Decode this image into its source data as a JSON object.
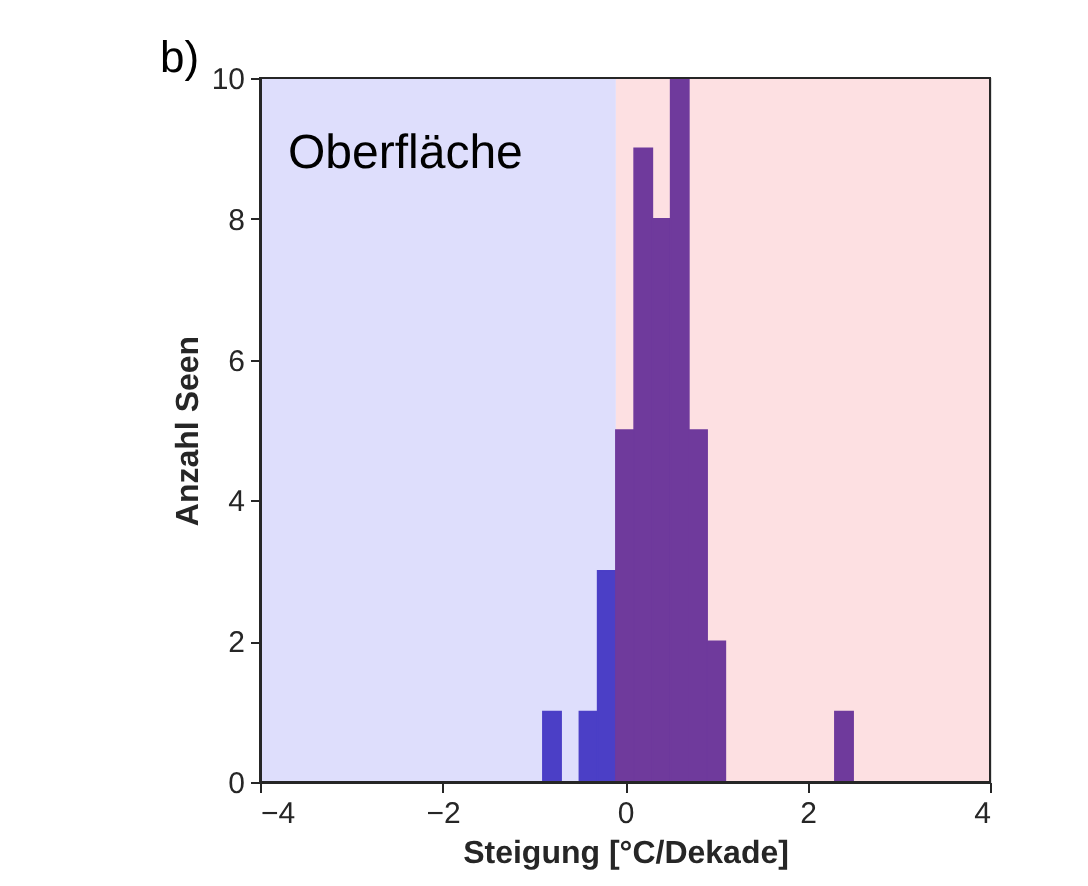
{
  "chart_data": {
    "type": "histogram",
    "bins": [
      -0.9,
      -0.7,
      -0.5,
      -0.3,
      -0.1,
      0.1,
      0.3,
      0.5,
      0.7,
      0.9,
      1.1,
      1.3,
      1.5,
      1.7,
      1.9,
      2.1,
      2.3,
      2.5
    ],
    "values": [
      1,
      0,
      1,
      3,
      5,
      9,
      8,
      10,
      5,
      2,
      0,
      0,
      0,
      0,
      0,
      0,
      1
    ],
    "colors": [
      "#4b3fc6",
      "#4b3fc6",
      "#4b3fc6",
      "#4b3fc6",
      "#6f3a9c",
      "#6f3a9c",
      "#6f3a9c",
      "#6f3a9c",
      "#6f3a9c",
      "#6f3a9c",
      "#6f3a9c",
      "#6f3a9c",
      "#6f3a9c",
      "#6f3a9c",
      "#6f3a9c",
      "#6f3a9c",
      "#6f3a9c"
    ],
    "xlabel": "Steigung [°C/Dekade]",
    "ylabel": "Anzahl Seen",
    "xlim": [
      -4,
      4
    ],
    "xticks": [
      -4,
      -2,
      0,
      2,
      4
    ],
    "ylim": [
      0,
      10
    ],
    "yticks": [
      0,
      2,
      4,
      6,
      8,
      10
    ],
    "bands": [
      {
        "axis": "x",
        "from": -4,
        "to": -0.1,
        "color": "#dedefc"
      },
      {
        "axis": "x",
        "from": -0.1,
        "to": 4,
        "color": "#fde0e2"
      }
    ],
    "annotations": [
      "b)",
      "Oberfläche"
    ],
    "grid": false,
    "legend": false
  }
}
